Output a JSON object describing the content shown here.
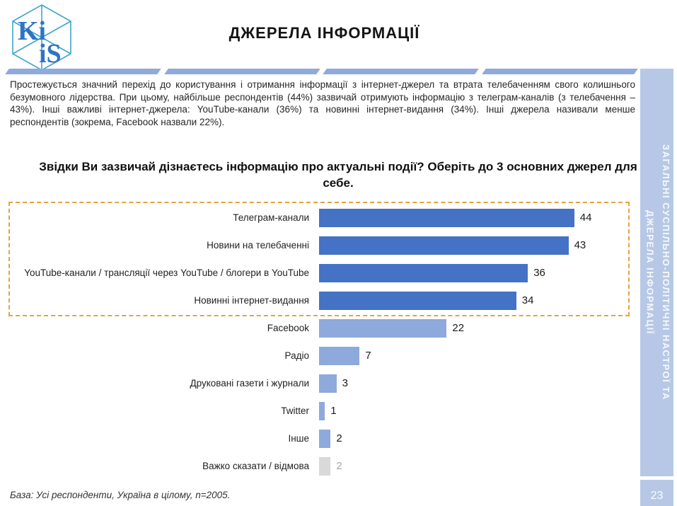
{
  "slide": {
    "logo": {
      "top_text": "Ki",
      "bottom_text": "iS"
    },
    "title": "ДЖЕРЕЛА ІНФОРМАЦІЇ",
    "summary": "Простежується значний перехід до користування і отримання інформації з інтернет-джерел та втрата телебаченням свого колишнього безумовного лідерства. При цьому, найбільше респондентів (44%) зазвичай отримують інформацію з телеграм-каналів (з телебачення – 43%). Інші важливі інтернет-джерела: YouTube-канали (36%) та новинні інтернет-видання (34%). Інші джерела називали менше респондентів (зокрема, Facebook назвали 22%).",
    "question": "Звідки Ви зазвичай дізнаєтесь інформацію про актуальні події? Оберіть до 3 основних джерел для себе.",
    "sidebar_text": "ЗАГАЛЬНІ СУСПІЛЬНО-ПОЛІТИЧНІ НАСТРОЇ ТА\nДЖЕРЕЛА ІНФОРМАЦІЇ",
    "base_note": "База: Усі респонденти, Україна в цілому, n=2005.",
    "page_number": "23"
  },
  "colors": {
    "bar_dark": "#4472C4",
    "bar_light": "#8EA9DB",
    "bar_gray": "#D9D9D9",
    "value_muted": "#A6A6A6",
    "highlight_border": "#E8A33D",
    "divider": "#8FAADB",
    "sidebar_bg": "#B7C8E7"
  },
  "chart_data": {
    "type": "bar",
    "orientation": "horizontal",
    "xlim": [
      0,
      48
    ],
    "grid": false,
    "legend": false,
    "highlight_box_rows": 4,
    "categories": [
      "Телеграм-канали",
      "Новини на телебаченні",
      "YouTube-канали / трансляції через YouTube / блогери в YouTube",
      "Новинні інтернет-видання",
      "Facebook",
      "Радіо",
      "Друковані газети і журнали",
      "Twitter",
      "Інше",
      "Важко сказати / відмова"
    ],
    "values": [
      44,
      43,
      36,
      34,
      22,
      7,
      3,
      1,
      2,
      2
    ],
    "bar_styles": [
      "dark",
      "dark",
      "dark",
      "dark",
      "light",
      "light",
      "light",
      "light",
      "light",
      "gray"
    ]
  }
}
